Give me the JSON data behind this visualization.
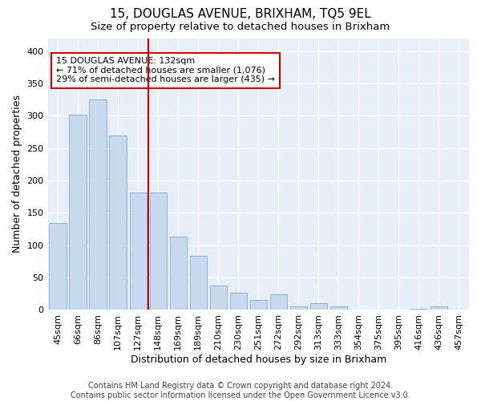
{
  "title": "15, DOUGLAS AVENUE, BRIXHAM, TQ5 9EL",
  "subtitle": "Size of property relative to detached houses in Brixham",
  "xlabel": "Distribution of detached houses by size in Brixham",
  "ylabel": "Number of detached properties",
  "categories": [
    "45sqm",
    "66sqm",
    "86sqm",
    "107sqm",
    "127sqm",
    "148sqm",
    "169sqm",
    "189sqm",
    "210sqm",
    "230sqm",
    "251sqm",
    "272sqm",
    "292sqm",
    "313sqm",
    "333sqm",
    "354sqm",
    "375sqm",
    "395sqm",
    "416sqm",
    "436sqm",
    "457sqm"
  ],
  "values": [
    135,
    302,
    325,
    270,
    181,
    181,
    113,
    83,
    38,
    27,
    15,
    24,
    5,
    10,
    5,
    0,
    1,
    0,
    2,
    5,
    0
  ],
  "bar_color": "#c8d9ee",
  "bar_edge_color": "#7aadd4",
  "bar_width": 0.85,
  "vline_x": 4.5,
  "vline_color": "#cc0000",
  "ylim": [
    0,
    420
  ],
  "yticks": [
    0,
    50,
    100,
    150,
    200,
    250,
    300,
    350,
    400
  ],
  "annotation_text": "15 DOUGLAS AVENUE: 132sqm\n← 71% of detached houses are smaller (1,076)\n29% of semi-detached houses are larger (435) →",
  "annotation_box_color": "white",
  "annotation_box_edge": "#cc0000",
  "footer_line1": "Contains HM Land Registry data © Crown copyright and database right 2024.",
  "footer_line2": "Contains public sector information licensed under the Open Government Licence v3.0.",
  "background_color": "#ffffff",
  "plot_bg_color": "#e8eef8",
  "grid_color": "#ffffff",
  "title_fontsize": 11,
  "subtitle_fontsize": 9.5,
  "label_fontsize": 9,
  "tick_fontsize": 8,
  "footer_fontsize": 7
}
